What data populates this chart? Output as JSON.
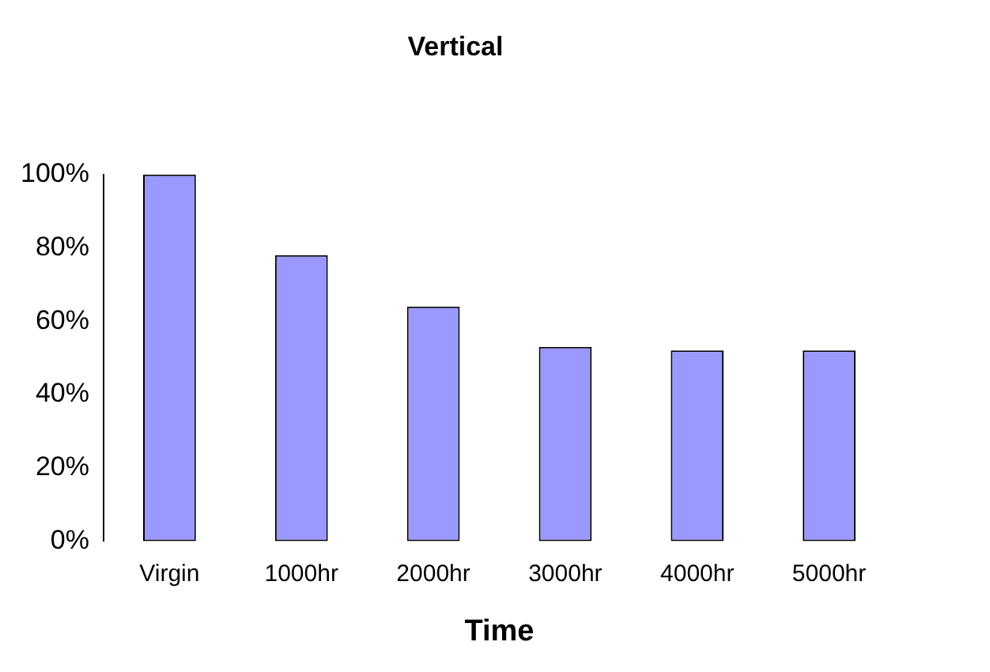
{
  "chart_data": {
    "type": "bar",
    "title": "Vertical",
    "xlabel": "Time",
    "categories": [
      "Virgin",
      "1000hr",
      "2000hr",
      "3000hr",
      "4000hr",
      "5000hr"
    ],
    "values": [
      100,
      78,
      64,
      53,
      52,
      52
    ],
    "color": "#9999ff",
    "ylim": [
      0,
      100
    ],
    "yticks": [
      {
        "value": 0,
        "label": "0%"
      },
      {
        "value": 20,
        "label": "20%"
      },
      {
        "value": 40,
        "label": "40%"
      },
      {
        "value": 60,
        "label": "60%"
      },
      {
        "value": 80,
        "label": "80%"
      },
      {
        "value": 100,
        "label": "100%"
      }
    ],
    "grid": false,
    "legend": false
  }
}
